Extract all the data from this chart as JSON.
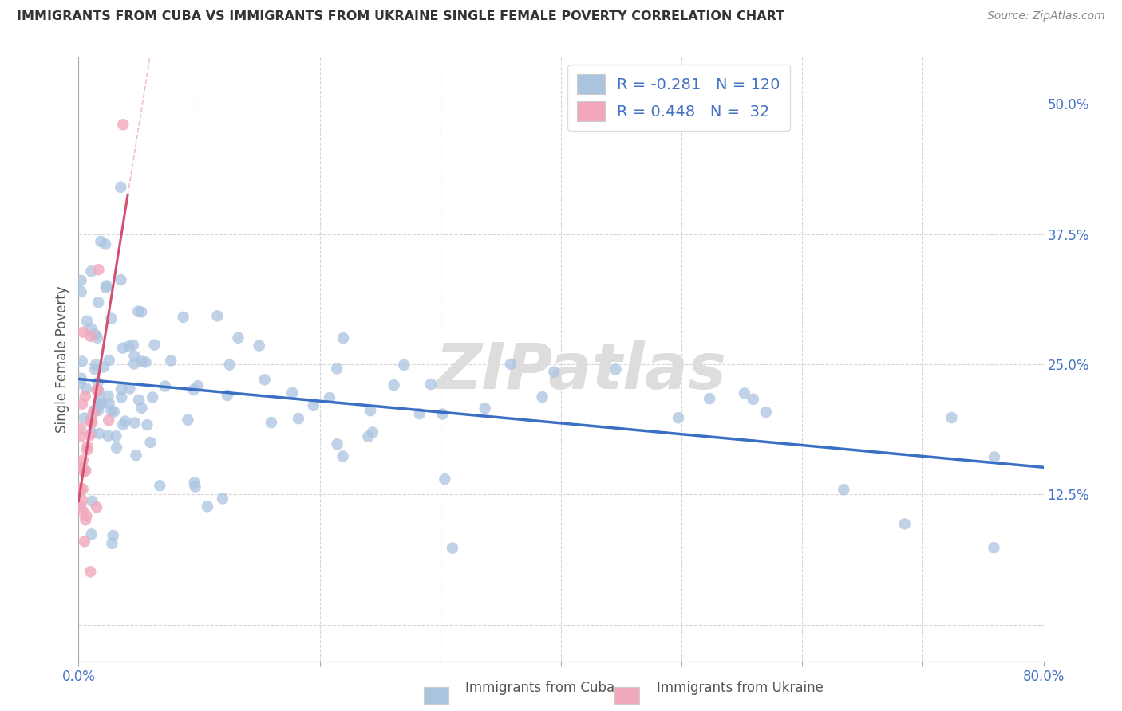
{
  "title": "IMMIGRANTS FROM CUBA VS IMMIGRANTS FROM UKRAINE SINGLE FEMALE POVERTY CORRELATION CHART",
  "source": "Source: ZipAtlas.com",
  "ylabel": "Single Female Poverty",
  "cuba_R": -0.281,
  "cuba_N": 120,
  "ukraine_R": 0.448,
  "ukraine_N": 32,
  "cuba_color": "#aac4e0",
  "ukraine_color": "#f2a8bc",
  "cuba_line_color": "#3a6fc4",
  "ukraine_line_color": "#d45070",
  "watermark": "ZIPatlas",
  "xmin": 0.0,
  "xmax": 0.8,
  "ymin": -0.035,
  "ymax": 0.545,
  "ytick_vals": [
    0.0,
    0.125,
    0.25,
    0.375,
    0.5
  ],
  "ytick_labels": [
    "",
    "12.5%",
    "25.0%",
    "37.5%",
    "50.0%"
  ],
  "xtick_vals": [
    0.0,
    0.1,
    0.2,
    0.3,
    0.4,
    0.5,
    0.6,
    0.7,
    0.8
  ],
  "xtick_labels": [
    "0.0%",
    "",
    "",
    "",
    "",
    "",
    "",
    "",
    "80.0%"
  ],
  "legend_text_color": "#4472c4",
  "legend_R_label": "R = ",
  "legend_N_label": "N = ",
  "bottom_legend_cuba": "Immigrants from Cuba",
  "bottom_legend_ukraine": "Immigrants from Ukraine"
}
